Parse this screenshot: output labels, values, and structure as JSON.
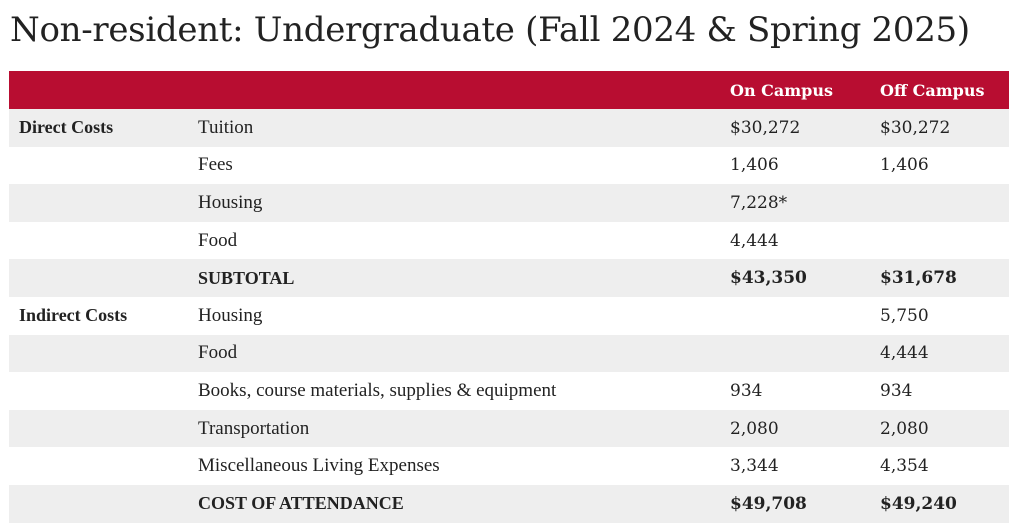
{
  "page": {
    "title": "Non-resident: Undergraduate (Fall 2024 & Spring 2025)"
  },
  "colors": {
    "header_background": "#b80d31",
    "header_text": "#ffffff",
    "stripe": "#eeeeee"
  },
  "table": {
    "headers": [
      "",
      "",
      "On Campus",
      "Off Campus"
    ],
    "rows": [
      {
        "group": "Direct Costs",
        "item": "Tuition",
        "on_campus": "$30,272",
        "off_campus": "$30,272"
      },
      {
        "group": "",
        "item": "Fees",
        "on_campus": "1,406",
        "off_campus": "1,406"
      },
      {
        "group": "",
        "item": "Housing",
        "on_campus": "7,228*",
        "off_campus": ""
      },
      {
        "group": "",
        "item": "Food",
        "on_campus": "4,444",
        "off_campus": ""
      },
      {
        "group": "",
        "item": "SUBTOTAL",
        "on_campus": "$43,350",
        "off_campus": "$31,678"
      },
      {
        "group": "Indirect Costs",
        "item": "Housing",
        "on_campus": "",
        "off_campus": "5,750"
      },
      {
        "group": "",
        "item": "Food",
        "on_campus": "",
        "off_campus": "4,444"
      },
      {
        "group": "",
        "item": "Books, course materials, supplies & equipment",
        "on_campus": "934",
        "off_campus": "934"
      },
      {
        "group": "",
        "item": "Transportation",
        "on_campus": "2,080",
        "off_campus": "2,080"
      },
      {
        "group": "",
        "item": "Miscellaneous Living Expenses",
        "on_campus": "3,344",
        "off_campus": "4,354"
      },
      {
        "group": "",
        "item": "COST OF ATTENDANCE",
        "on_campus": "$49,708",
        "off_campus": "$49,240"
      }
    ]
  }
}
